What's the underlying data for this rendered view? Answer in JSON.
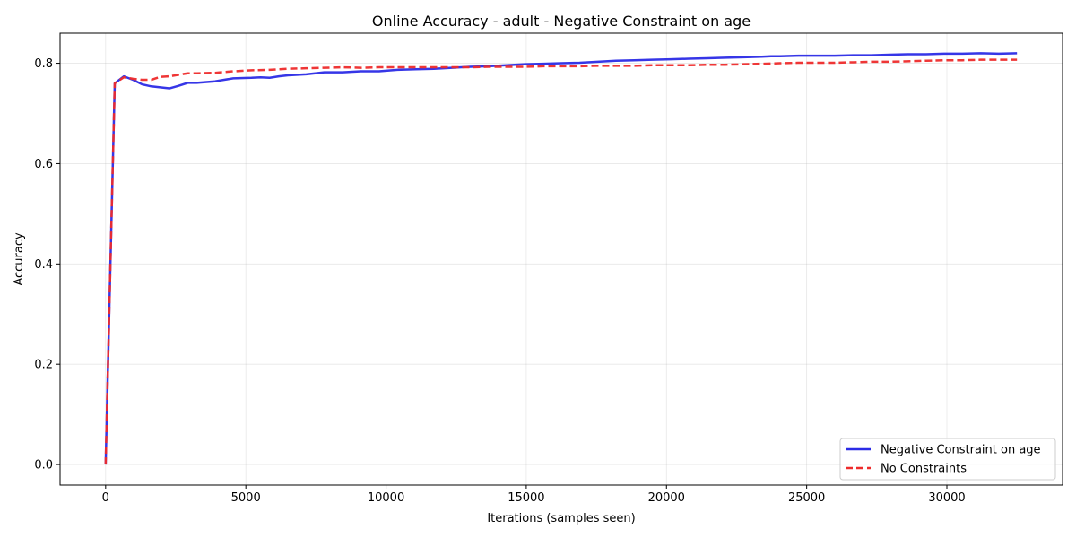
{
  "chart_data": {
    "type": "line",
    "title": "Online Accuracy - adult - Negative Constraint on age",
    "xlabel": "Iterations (samples seen)",
    "ylabel": "Accuracy",
    "xlim": [
      -1625,
      34125
    ],
    "ylim": [
      -0.041,
      0.86
    ],
    "xticks": [
      0,
      5000,
      10000,
      15000,
      20000,
      25000,
      30000
    ],
    "xtick_labels": [
      "0",
      "5000",
      "10000",
      "15000",
      "20000",
      "25000",
      "30000"
    ],
    "yticks": [
      0.0,
      0.2,
      0.4,
      0.6,
      0.8
    ],
    "ytick_labels": [
      "0.0",
      "0.2",
      "0.4",
      "0.6",
      "0.8"
    ],
    "grid": true,
    "legend_position": "lower-right",
    "series": [
      {
        "name": "Negative Constraint on age",
        "color": "#2b2be6",
        "linestyle": "solid",
        "x": [
          0,
          325,
          650,
          975,
          1300,
          1625,
          1950,
          2275,
          2600,
          2925,
          3250,
          3900,
          4550,
          5200,
          5525,
          5850,
          6175,
          6500,
          7150,
          7800,
          8450,
          9100,
          9425,
          9750,
          10400,
          11050,
          11700,
          12350,
          13000,
          13650,
          14300,
          14950,
          15600,
          16250,
          16900,
          17550,
          18200,
          18850,
          19500,
          20150,
          20800,
          21450,
          22100,
          22750,
          23400,
          23725,
          24050,
          24700,
          25025,
          25350,
          26000,
          26650,
          27300,
          27950,
          28600,
          29250,
          29900,
          30550,
          31200,
          31850,
          32500
        ],
        "y": [
          0.0,
          0.76,
          0.774,
          0.767,
          0.758,
          0.754,
          0.752,
          0.75,
          0.755,
          0.761,
          0.761,
          0.764,
          0.77,
          0.771,
          0.772,
          0.771,
          0.774,
          0.776,
          0.778,
          0.782,
          0.782,
          0.784,
          0.784,
          0.784,
          0.787,
          0.788,
          0.789,
          0.791,
          0.793,
          0.794,
          0.796,
          0.798,
          0.799,
          0.8,
          0.801,
          0.803,
          0.805,
          0.806,
          0.807,
          0.808,
          0.809,
          0.81,
          0.811,
          0.812,
          0.813,
          0.814,
          0.814,
          0.815,
          0.815,
          0.815,
          0.815,
          0.816,
          0.816,
          0.817,
          0.818,
          0.818,
          0.819,
          0.819,
          0.82,
          0.819,
          0.82
        ]
      },
      {
        "name": "No Constraints",
        "color": "#ee2b2b",
        "linestyle": "dashed",
        "x": [
          0,
          325,
          650,
          975,
          1300,
          1625,
          1950,
          2275,
          2600,
          2925,
          3250,
          3900,
          4550,
          5200,
          5850,
          6500,
          7150,
          7800,
          8450,
          9100,
          9750,
          10400,
          11050,
          11700,
          12350,
          13000,
          13650,
          14300,
          14950,
          15600,
          16250,
          16900,
          17550,
          18200,
          18850,
          19500,
          20150,
          20800,
          21450,
          22100,
          22750,
          23400,
          24050,
          24700,
          25350,
          26000,
          26650,
          27300,
          27950,
          28600,
          29250,
          29900,
          30550,
          31200,
          31850,
          32500
        ],
        "y": [
          0.0,
          0.76,
          0.772,
          0.769,
          0.767,
          0.767,
          0.773,
          0.774,
          0.777,
          0.78,
          0.78,
          0.781,
          0.784,
          0.786,
          0.787,
          0.789,
          0.79,
          0.791,
          0.792,
          0.791,
          0.792,
          0.792,
          0.792,
          0.792,
          0.792,
          0.792,
          0.793,
          0.793,
          0.793,
          0.794,
          0.794,
          0.794,
          0.795,
          0.795,
          0.795,
          0.796,
          0.796,
          0.796,
          0.797,
          0.797,
          0.798,
          0.799,
          0.8,
          0.801,
          0.801,
          0.801,
          0.802,
          0.803,
          0.803,
          0.804,
          0.805,
          0.806,
          0.806,
          0.807,
          0.807,
          0.807
        ]
      }
    ]
  }
}
